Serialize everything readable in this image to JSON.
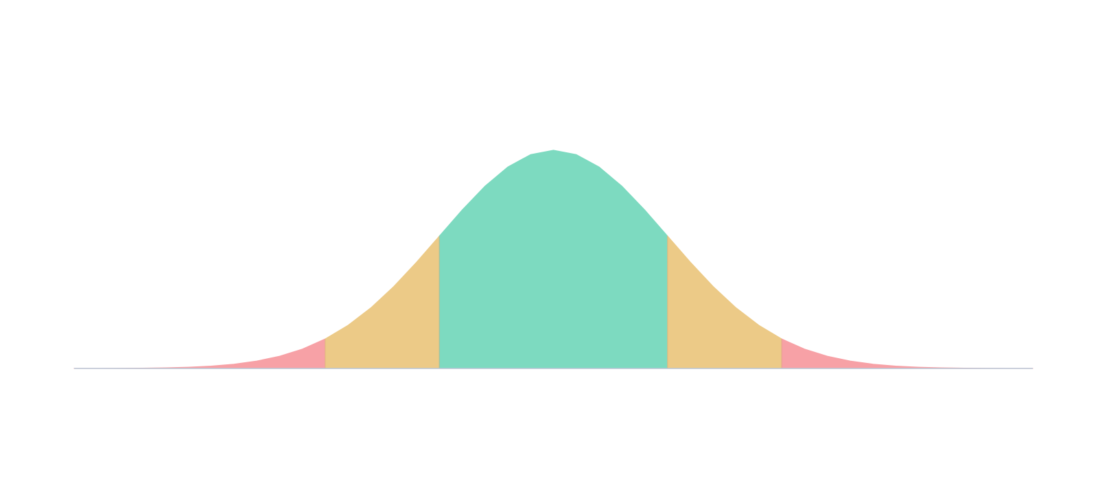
{
  "chart_data": {
    "type": "area",
    "x": [
      -4.2,
      -4.0,
      -3.8,
      -3.6,
      -3.4,
      -3.2,
      -3.0,
      -2.8,
      -2.6,
      -2.4,
      -2.2,
      -2.0,
      -1.8,
      -1.6,
      -1.4,
      -1.2,
      -1.0,
      -0.8,
      -0.6,
      -0.4,
      -0.2,
      0.0,
      0.2,
      0.4,
      0.6,
      0.8,
      1.0,
      1.2,
      1.4,
      1.6,
      1.8,
      2.0,
      2.2,
      2.4,
      2.6,
      2.8,
      3.0,
      3.2,
      3.4,
      3.6,
      3.8,
      4.0,
      4.2
    ],
    "values": [
      0.0001,
      0.0001,
      0.0003,
      0.0006,
      0.0012,
      0.0024,
      0.0044,
      0.0079,
      0.0136,
      0.0224,
      0.0355,
      0.054,
      0.079,
      0.1109,
      0.1497,
      0.1942,
      0.242,
      0.2897,
      0.3332,
      0.3683,
      0.391,
      0.3989,
      0.391,
      0.3683,
      0.3332,
      0.2897,
      0.242,
      0.1942,
      0.1497,
      0.1109,
      0.079,
      0.054,
      0.0355,
      0.0224,
      0.0136,
      0.0079,
      0.0044,
      0.0024,
      0.0012,
      0.0006,
      0.0003,
      0.0001,
      0.0001
    ],
    "bands": [
      {
        "from": -4.2,
        "to": -2.0,
        "color": "#f7a1a6"
      },
      {
        "from": -2.0,
        "to": -1.0,
        "color": "#ecca87"
      },
      {
        "from": -1.0,
        "to": 1.0,
        "color": "#7ddac0"
      },
      {
        "from": 1.0,
        "to": 2.0,
        "color": "#ecca87"
      },
      {
        "from": 2.0,
        "to": 4.2,
        "color": "#f7a1a6"
      }
    ],
    "xlim": [
      -4.2,
      4.2
    ],
    "ylim": [
      0,
      0.4
    ],
    "axis_color": "#b8c4d4"
  }
}
